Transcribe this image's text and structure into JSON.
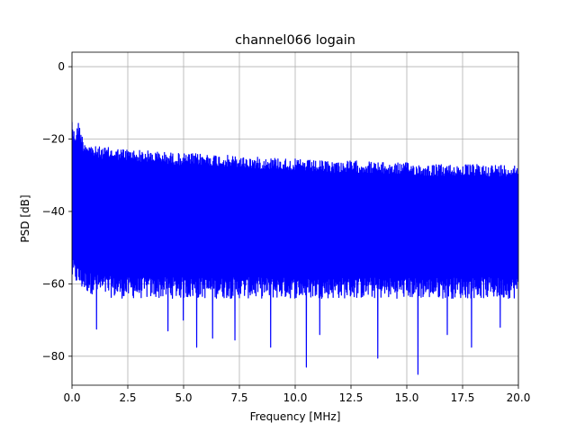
{
  "chart_data": {
    "type": "line",
    "title": "channel066 logain",
    "xlabel": "Frequency [MHz]",
    "ylabel": "PSD [dB]",
    "xlim": [
      0,
      20
    ],
    "ylim": [
      -88,
      4
    ],
    "grid": true,
    "xticks": [
      0,
      2.5,
      5,
      7.5,
      10,
      12.5,
      15,
      17.5,
      20
    ],
    "xtick_labels": [
      "0.0",
      "2.5",
      "5.0",
      "7.5",
      "10.0",
      "12.5",
      "15.0",
      "17.5",
      "20.0"
    ],
    "yticks": [
      0,
      -20,
      -40,
      -60,
      -80
    ],
    "ytick_labels": [
      "0",
      "−20",
      "−40",
      "−60",
      "−80"
    ],
    "series": [
      {
        "color": "#0000ff",
        "upper_envelope": {
          "x": [
            0,
            0.05,
            0.15,
            0.3,
            0.5,
            1,
            2,
            3,
            4,
            5,
            6,
            7,
            8,
            9,
            10,
            11,
            12,
            13,
            14,
            15,
            16,
            17,
            18,
            19,
            20
          ],
          "y": [
            -13,
            -17,
            -18,
            -15,
            -20,
            -22,
            -22.5,
            -23,
            -23.5,
            -24,
            -24,
            -24.5,
            -25,
            -25,
            -25.5,
            -26,
            -26,
            -26,
            -26.5,
            -26.5,
            -27,
            -27,
            -27,
            -27,
            -27
          ]
        },
        "lower_envelope": {
          "x": [
            0,
            0.5,
            1,
            2,
            3,
            4,
            5,
            6,
            7,
            8,
            9,
            10,
            11,
            12,
            13,
            14,
            15,
            16,
            17,
            18,
            19,
            20
          ],
          "y": [
            -59,
            -62,
            -63,
            -64,
            -64,
            -64,
            -64,
            -64,
            -64,
            -64,
            -64,
            -64,
            -64,
            -64,
            -64,
            -64,
            -64,
            -64,
            -64,
            -64,
            -64,
            -64
          ]
        },
        "dips": [
          {
            "x": 1.1,
            "y": -72.5
          },
          {
            "x": 4.3,
            "y": -73
          },
          {
            "x": 5.0,
            "y": -70
          },
          {
            "x": 5.6,
            "y": -77.5
          },
          {
            "x": 6.3,
            "y": -75
          },
          {
            "x": 7.3,
            "y": -75.5
          },
          {
            "x": 8.9,
            "y": -77.5
          },
          {
            "x": 10.5,
            "y": -83
          },
          {
            "x": 11.1,
            "y": -74
          },
          {
            "x": 13.7,
            "y": -80.5
          },
          {
            "x": 15.5,
            "y": -85
          },
          {
            "x": 16.8,
            "y": -74
          },
          {
            "x": 17.9,
            "y": -77.5
          },
          {
            "x": 19.2,
            "y": -72
          }
        ]
      }
    ]
  }
}
